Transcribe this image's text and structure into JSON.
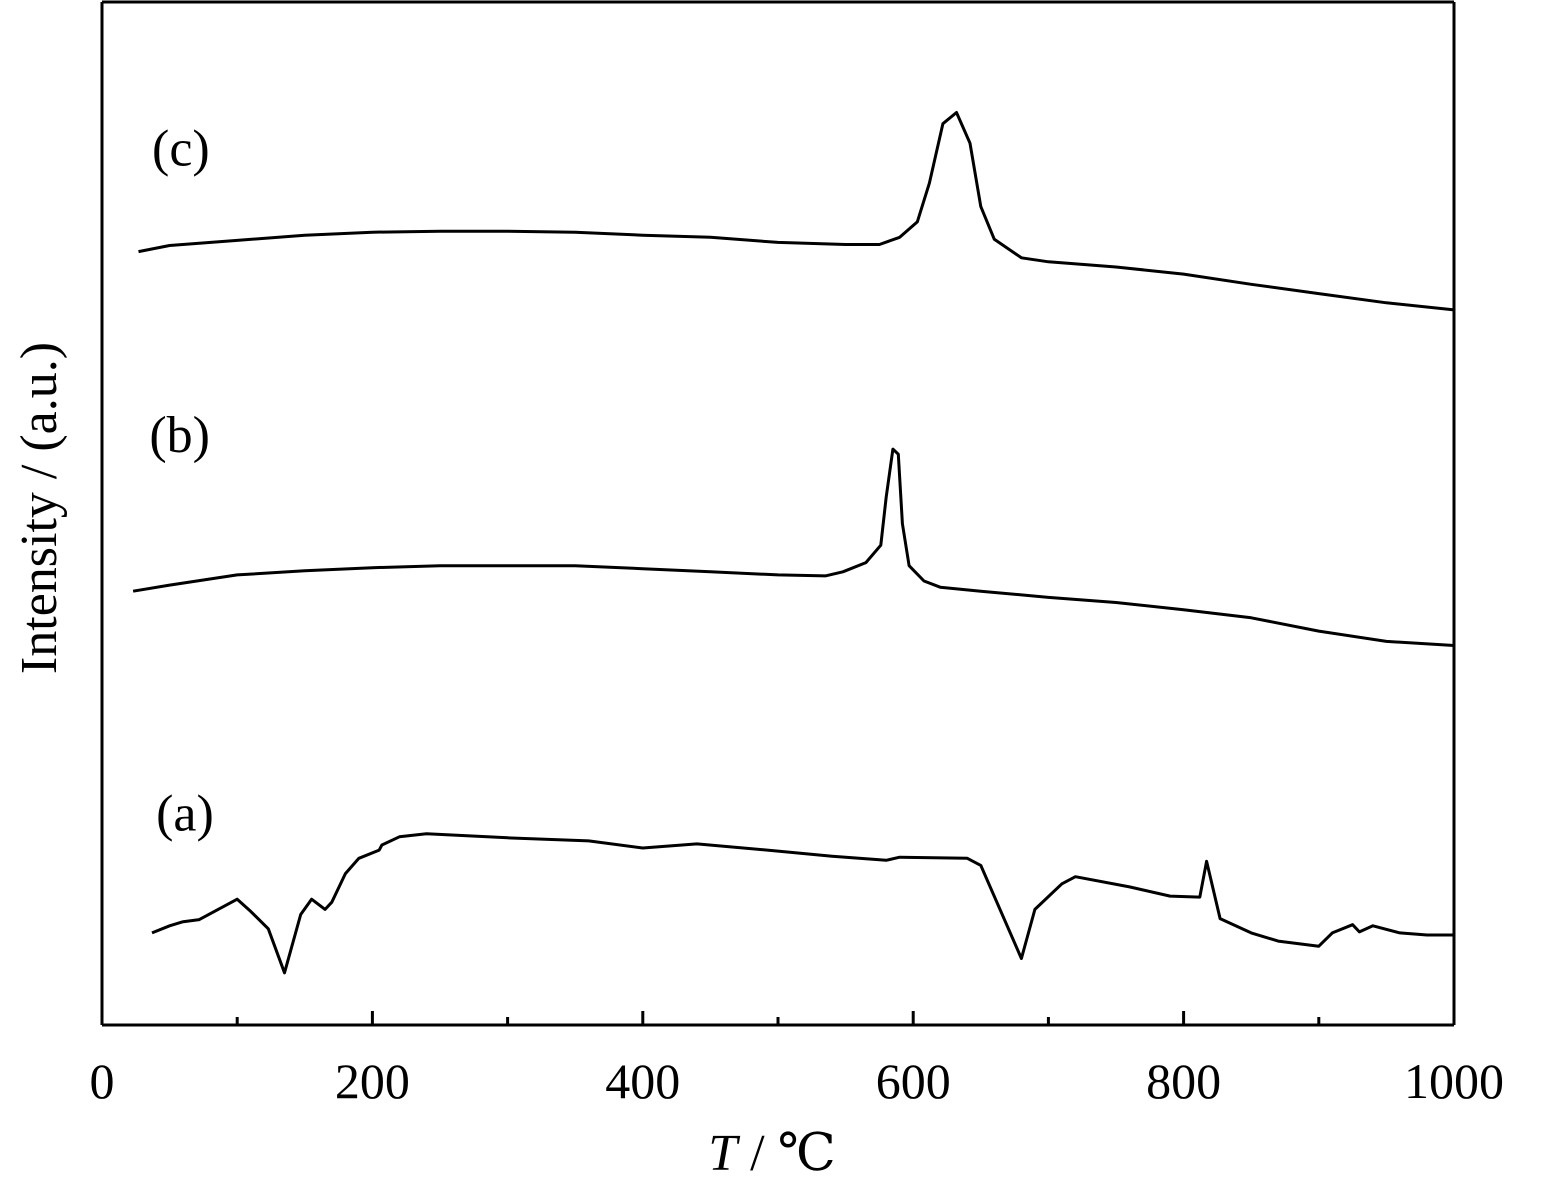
{
  "chart_data": {
    "type": "line",
    "xlabel": {
      "symbol": "T",
      "rest": " / ℃"
    },
    "ylabel": "Intensity / (a.u.)",
    "xlim": [
      0,
      1000
    ],
    "ylim": [
      0,
      1
    ],
    "x_ticks": [
      0,
      200,
      400,
      600,
      800,
      1000
    ],
    "x_tick_labels": [
      "0",
      "200",
      "400",
      "600",
      "800",
      "1000"
    ],
    "x_minor_ticks": [
      100,
      300,
      500,
      700,
      900
    ],
    "grid": false,
    "legend": "none",
    "series": [
      {
        "name": "(a)",
        "points": [
          [
            37,
            0.09
          ],
          [
            50,
            0.097
          ],
          [
            60,
            0.101
          ],
          [
            72,
            0.103
          ],
          [
            100,
            0.123
          ],
          [
            110,
            0.111
          ],
          [
            123,
            0.094
          ],
          [
            135,
            0.051
          ],
          [
            147,
            0.108
          ],
          [
            155,
            0.123
          ],
          [
            165,
            0.113
          ],
          [
            170,
            0.12
          ],
          [
            180,
            0.148
          ],
          [
            190,
            0.163
          ],
          [
            205,
            0.171
          ],
          [
            207,
            0.176
          ],
          [
            220,
            0.184
          ],
          [
            240,
            0.187
          ],
          [
            300,
            0.183
          ],
          [
            360,
            0.18
          ],
          [
            400,
            0.173
          ],
          [
            440,
            0.177
          ],
          [
            500,
            0.17
          ],
          [
            540,
            0.165
          ],
          [
            580,
            0.161
          ],
          [
            590,
            0.164
          ],
          [
            640,
            0.163
          ],
          [
            650,
            0.156
          ],
          [
            680,
            0.065
          ],
          [
            690,
            0.113
          ],
          [
            710,
            0.138
          ],
          [
            720,
            0.145
          ],
          [
            760,
            0.135
          ],
          [
            790,
            0.126
          ],
          [
            812,
            0.125
          ],
          [
            817,
            0.16
          ],
          [
            827,
            0.104
          ],
          [
            850,
            0.09
          ],
          [
            870,
            0.082
          ],
          [
            900,
            0.077
          ],
          [
            910,
            0.09
          ],
          [
            925,
            0.098
          ],
          [
            930,
            0.091
          ],
          [
            940,
            0.097
          ],
          [
            960,
            0.09
          ],
          [
            980,
            0.088
          ],
          [
            1000,
            0.088
          ]
        ]
      },
      {
        "name": "(b)",
        "points": [
          [
            23,
            0.424
          ],
          [
            50,
            0.43
          ],
          [
            100,
            0.44
          ],
          [
            150,
            0.444
          ],
          [
            200,
            0.447
          ],
          [
            250,
            0.449
          ],
          [
            300,
            0.449
          ],
          [
            350,
            0.449
          ],
          [
            400,
            0.446
          ],
          [
            450,
            0.443
          ],
          [
            500,
            0.44
          ],
          [
            535,
            0.439
          ],
          [
            548,
            0.443
          ],
          [
            565,
            0.452
          ],
          [
            576,
            0.469
          ],
          [
            580,
            0.516
          ],
          [
            585,
            0.563
          ],
          [
            589,
            0.558
          ],
          [
            592,
            0.49
          ],
          [
            597,
            0.449
          ],
          [
            608,
            0.434
          ],
          [
            620,
            0.428
          ],
          [
            650,
            0.424
          ],
          [
            700,
            0.418
          ],
          [
            750,
            0.413
          ],
          [
            800,
            0.406
          ],
          [
            850,
            0.398
          ],
          [
            900,
            0.385
          ],
          [
            950,
            0.375
          ],
          [
            1000,
            0.371
          ]
        ]
      },
      {
        "name": "(c)",
        "points": [
          [
            27,
            0.756
          ],
          [
            50,
            0.762
          ],
          [
            100,
            0.767
          ],
          [
            150,
            0.772
          ],
          [
            200,
            0.775
          ],
          [
            250,
            0.776
          ],
          [
            300,
            0.776
          ],
          [
            350,
            0.775
          ],
          [
            400,
            0.772
          ],
          [
            450,
            0.77
          ],
          [
            500,
            0.765
          ],
          [
            550,
            0.763
          ],
          [
            575,
            0.763
          ],
          [
            590,
            0.77
          ],
          [
            603,
            0.785
          ],
          [
            612,
            0.823
          ],
          [
            622,
            0.881
          ],
          [
            632,
            0.892
          ],
          [
            642,
            0.862
          ],
          [
            650,
            0.8
          ],
          [
            660,
            0.768
          ],
          [
            680,
            0.75
          ],
          [
            700,
            0.746
          ],
          [
            750,
            0.741
          ],
          [
            800,
            0.734
          ],
          [
            850,
            0.724
          ],
          [
            900,
            0.715
          ],
          [
            950,
            0.706
          ],
          [
            1000,
            0.699
          ]
        ]
      }
    ]
  }
}
